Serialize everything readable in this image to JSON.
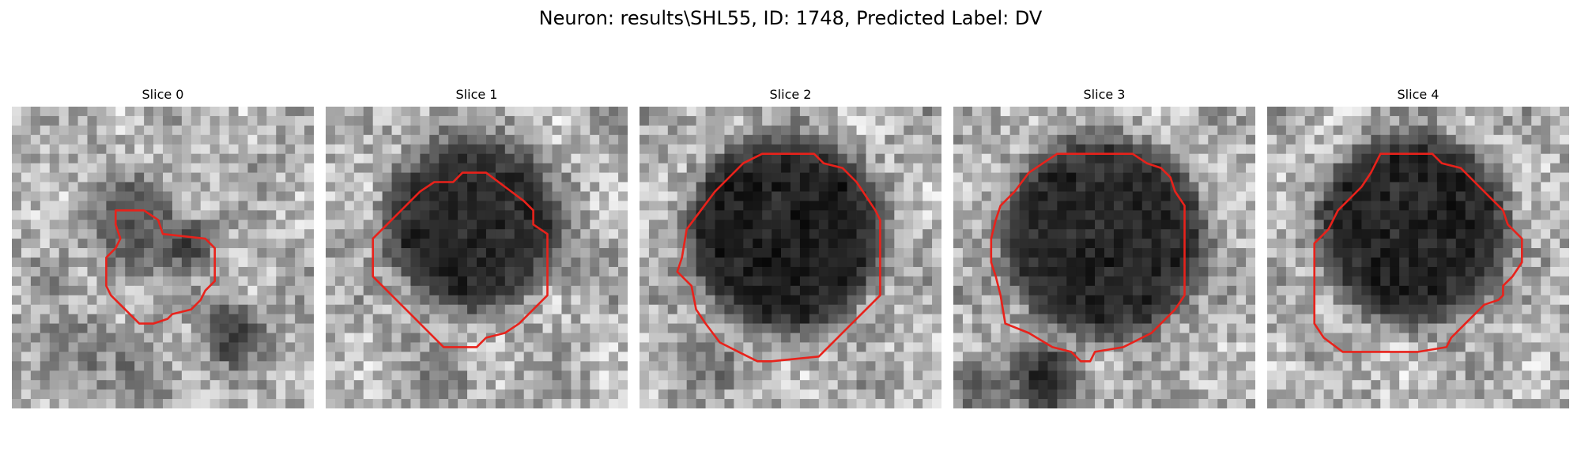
{
  "title": "Neuron: results\\SHL55, ID: 1748, Predicted Label: DV",
  "colors": {
    "contour": "#e8221b"
  },
  "panels": [
    {
      "label": "Slice 0"
    },
    {
      "label": "Slice 1"
    },
    {
      "label": "Slice 2"
    },
    {
      "label": "Slice 3"
    },
    {
      "label": "Slice 4"
    }
  ]
}
